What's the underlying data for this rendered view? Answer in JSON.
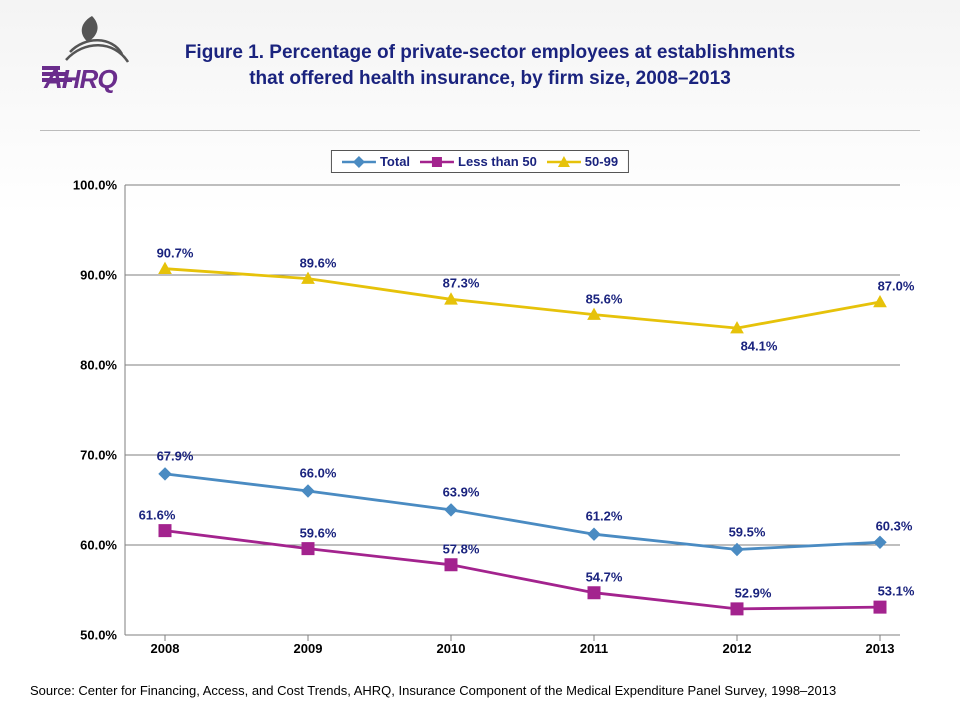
{
  "logo_text": "AHRQ",
  "title": "Figure 1. Percentage of private-sector employees at establishments that offered health insurance, by firm size, 2008–2013",
  "source": "Source: Center for Financing, Access, and Cost Trends, AHRQ, Insurance Component of the Medical Expenditure Panel Survey, 1998–2013",
  "chart": {
    "type": "line",
    "years": [
      "2008",
      "2009",
      "2010",
      "2011",
      "2012",
      "2013"
    ],
    "ylim": [
      50,
      100
    ],
    "ytick_step": 10,
    "ytick_labels": [
      "50.0%",
      "60.0%",
      "70.0%",
      "80.0%",
      "90.0%",
      "100.0%"
    ],
    "grid_color": "#7f7f7f",
    "axis_color": "#7f7f7f",
    "background_color": "#ffffff",
    "label_color": "#1a237e",
    "label_fontsize": 13,
    "series": [
      {
        "name": "Total",
        "color": "#4a8bc2",
        "marker": "diamond",
        "values": [
          67.9,
          66.0,
          63.9,
          61.2,
          59.5,
          60.3
        ],
        "labels": [
          "67.9%",
          "66.0%",
          "63.9%",
          "61.2%",
          "59.5%",
          "60.3%"
        ],
        "label_dy": -18
      },
      {
        "name": "Less than 50",
        "color": "#a3238e",
        "marker": "square",
        "values": [
          61.6,
          59.6,
          57.8,
          54.7,
          52.9,
          53.1
        ],
        "labels": [
          "61.6%",
          "59.6%",
          "57.8%",
          "54.7%",
          "52.9%",
          "53.1%"
        ],
        "label_dy": -16
      },
      {
        "name": "50-99",
        "color": "#e6c20a",
        "marker": "triangle",
        "values": [
          90.7,
          89.6,
          87.3,
          85.6,
          84.1,
          87.0
        ],
        "labels": [
          "90.7%",
          "89.6%",
          "87.3%",
          "85.6%",
          "84.1%",
          "87.0%"
        ],
        "label_dy": -16
      }
    ]
  }
}
